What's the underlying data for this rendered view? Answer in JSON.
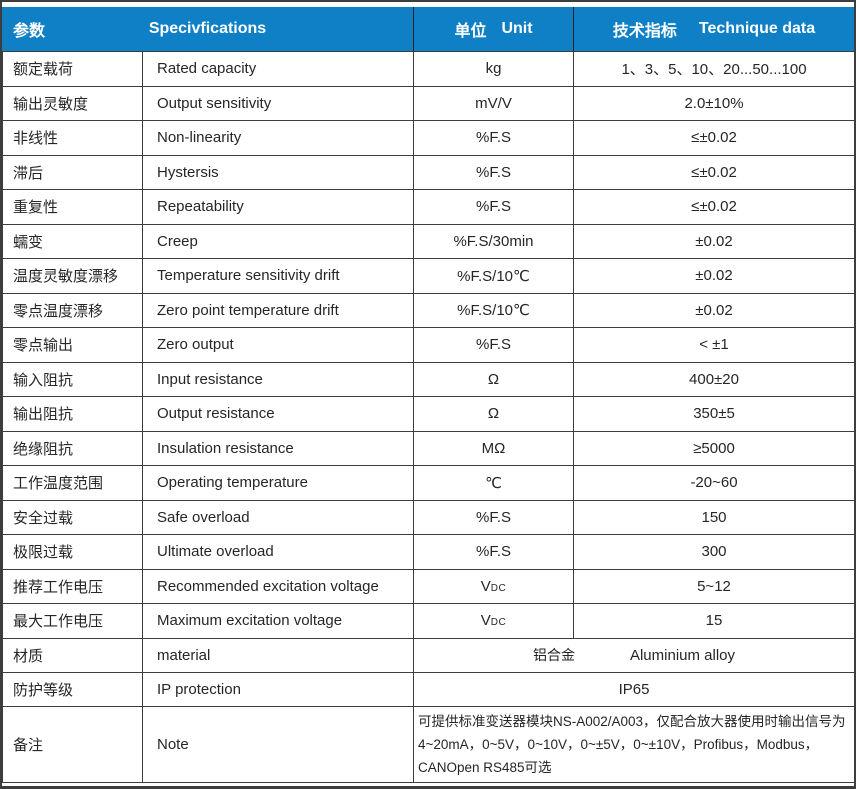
{
  "colors": {
    "header_bg": "#0f80c5",
    "border": "#3d3d3d",
    "text": "#262626",
    "header_text": "#ffffff"
  },
  "header": {
    "param_zh": "参数",
    "spec_en": "Specivfications",
    "unit_zh": "单位",
    "unit_en": "Unit",
    "tech_zh": "技术指标",
    "tech_en": "Technique data"
  },
  "rows": [
    {
      "param": "额定载荷",
      "spec": "Rated capacity",
      "unit": "kg",
      "value": "1、3、5、10、20...50...100"
    },
    {
      "param": "输出灵敏度",
      "spec": "Output sensitivity",
      "unit": "mV/V",
      "value": "2.0±10%"
    },
    {
      "param": "非线性",
      "spec": "Non-linearity",
      "unit": "%F.S",
      "value": "≤±0.02"
    },
    {
      "param": "滞后",
      "spec": "Hystersis",
      "unit": "%F.S",
      "value": "≤±0.02"
    },
    {
      "param": "重复性",
      "spec": "Repeatability",
      "unit": "%F.S",
      "value": "≤±0.02"
    },
    {
      "param": "蠕变",
      "spec": "Creep",
      "unit": "%F.S/30min",
      "value": "±0.02"
    },
    {
      "param": "温度灵敏度漂移",
      "spec": "Temperature sensitivity drift",
      "unit": "%F.S/10℃",
      "value": "±0.02"
    },
    {
      "param": "零点温度漂移",
      "spec": "Zero point temperature drift",
      "unit": "%F.S/10℃",
      "value": "±0.02"
    },
    {
      "param": "零点输出",
      "spec": "Zero output",
      "unit": "%F.S",
      "value": "< ±1"
    },
    {
      "param": "输入阻抗",
      "spec": "Input resistance",
      "unit": "Ω",
      "value": "400±20"
    },
    {
      "param": "输出阻抗",
      "spec": "Output resistance",
      "unit": "Ω",
      "value": "350±5"
    },
    {
      "param": "绝缘阻抗",
      "spec": "Insulation resistance",
      "unit": "MΩ",
      "value": "≥5000"
    },
    {
      "param": "工作温度范围",
      "spec": "Operating temperature",
      "unit": "℃",
      "value": "-20~60"
    },
    {
      "param": "安全过载",
      "spec": "Safe overload",
      "unit": "%F.S",
      "value": "150"
    },
    {
      "param": "极限过载",
      "spec": "Ultimate overload",
      "unit": "%F.S",
      "value": "300"
    },
    {
      "param": "推荐工作电压",
      "spec": "Recommended excitation voltage",
      "unit": "V",
      "unit_sub": "DC",
      "value": "5~12"
    },
    {
      "param": "最大工作电压",
      "spec": "Maximum excitation voltage",
      "unit": "V",
      "unit_sub": "DC",
      "value": "15"
    }
  ],
  "material_row": {
    "param": "材质",
    "spec": "material",
    "value_zh": "铝合金",
    "value_en": "Aluminium alloy"
  },
  "ip_row": {
    "param": "防护等级",
    "spec": "IP protection",
    "value": "IP65"
  },
  "note_row": {
    "param": "备注",
    "spec": "Note",
    "line1": "可提供标准变送器模块NS-A002/A003，仅配合放大器使用时输出信号为",
    "line2": "4~20mA，0~5V，0~10V，0~±5V，0~±10V，Profibus，Modbus，",
    "line3": "CANOpen RS485可选"
  }
}
